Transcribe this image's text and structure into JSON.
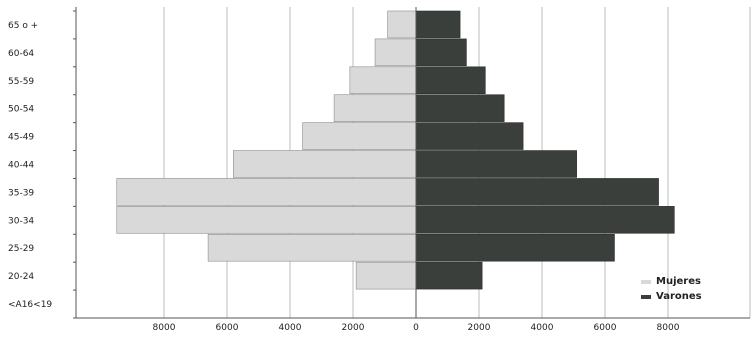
{
  "chart_data": {
    "type": "bar",
    "orientation": "horizontal",
    "subtype": "population-pyramid",
    "title": "",
    "xlabel": "",
    "ylabel": "",
    "categories": [
      "65 o +",
      "60-64",
      "55-59",
      "50-54",
      "45-49",
      "40-44",
      "35-39",
      "30-34",
      "25-29",
      "20-24",
      "<A16<19"
    ],
    "series": [
      {
        "name": "Mujeres",
        "side": "left",
        "color": "#d9d9d9",
        "values": [
          900,
          1300,
          2100,
          2600,
          3600,
          5800,
          9500,
          9500,
          6600,
          1900,
          0
        ]
      },
      {
        "name": "Varones",
        "side": "right",
        "color": "#3a3f3c",
        "values": [
          1400,
          1600,
          2200,
          2800,
          3400,
          5100,
          7700,
          8200,
          6300,
          2100,
          0
        ]
      }
    ],
    "x_ticks": [
      "8000",
      "6000",
      "4000",
      "2000",
      "0",
      "2000",
      "4000",
      "6000",
      "8000"
    ],
    "xlim": [
      -9500,
      9500
    ],
    "grid": "vertical",
    "legend_position": "bottom-right"
  }
}
